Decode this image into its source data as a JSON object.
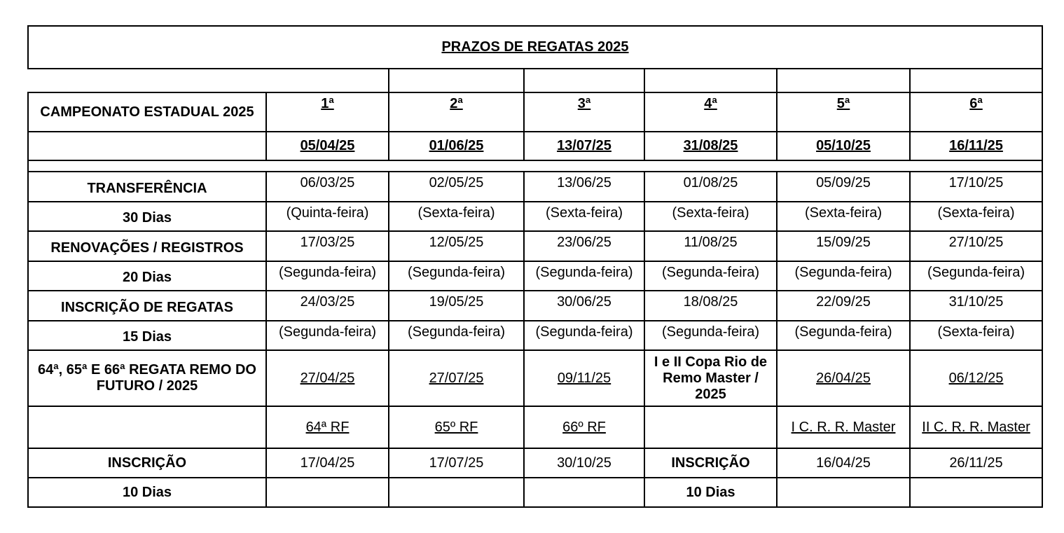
{
  "title": "PRAZOS DE REGATAS 2025",
  "header": {
    "label": "CAMPEONATO ESTADUAL 2025",
    "stages": [
      "1ª",
      "2ª",
      "3ª",
      "4ª",
      "5ª",
      "6ª"
    ],
    "dates": [
      "05/04/25",
      "01/06/25",
      "13/07/25",
      "31/08/25",
      "05/10/25",
      "16/11/25"
    ]
  },
  "rows": [
    {
      "label": "TRANSFERÊNCIA",
      "cells": [
        "06/03/25",
        "02/05/25",
        "13/06/25",
        "01/08/25",
        "05/09/25",
        "17/10/25"
      ]
    },
    {
      "label": "30 Dias",
      "cells": [
        "(Quinta-feira)",
        "(Sexta-feira)",
        "(Sexta-feira)",
        "(Sexta-feira)",
        "(Sexta-feira)",
        "(Sexta-feira)"
      ]
    },
    {
      "label": "RENOVAÇÕES / REGISTROS",
      "cells": [
        "17/03/25",
        "12/05/25",
        "23/06/25",
        "11/08/25",
        "15/09/25",
        "27/10/25"
      ]
    },
    {
      "label": "20 Dias",
      "cells": [
        "(Segunda-feira)",
        "(Segunda-feira)",
        "(Segunda-feira)",
        "(Segunda-feira)",
        "(Segunda-feira)",
        "(Segunda-feira)"
      ]
    },
    {
      "label": "INSCRIÇÃO DE REGATAS",
      "cells": [
        "24/03/25",
        "19/05/25",
        "30/06/25",
        "18/08/25",
        "22/09/25",
        "31/10/25"
      ]
    },
    {
      "label": "15 Dias",
      "cells": [
        "(Segunda-feira)",
        "(Segunda-feira)",
        "(Segunda-feira)",
        "(Segunda-feira)",
        "(Segunda-feira)",
        "(Sexta-feira)"
      ]
    }
  ],
  "events": {
    "label": "64ª, 65ª E 66ª REGATA REMO DO FUTURO / 2025",
    "cells": [
      "27/04/25",
      "27/07/25",
      "09/11/25",
      "I e II Copa Rio de Remo Master / 2025",
      "26/04/25",
      "06/12/25"
    ],
    "names": [
      "64ª RF",
      "65º RF",
      "66º RF",
      "",
      "I C. R. R. Master",
      "II C. R. R. Master"
    ]
  },
  "inscricao": {
    "label": "INSCRIÇÃO",
    "cells": [
      "17/04/25",
      "17/07/25",
      "30/10/25",
      "INSCRIÇÃO",
      "16/04/25",
      "26/11/25"
    ]
  },
  "dias": {
    "label": "10 Dias",
    "cells": [
      "",
      "",
      "",
      "10 Dias",
      "",
      ""
    ]
  }
}
